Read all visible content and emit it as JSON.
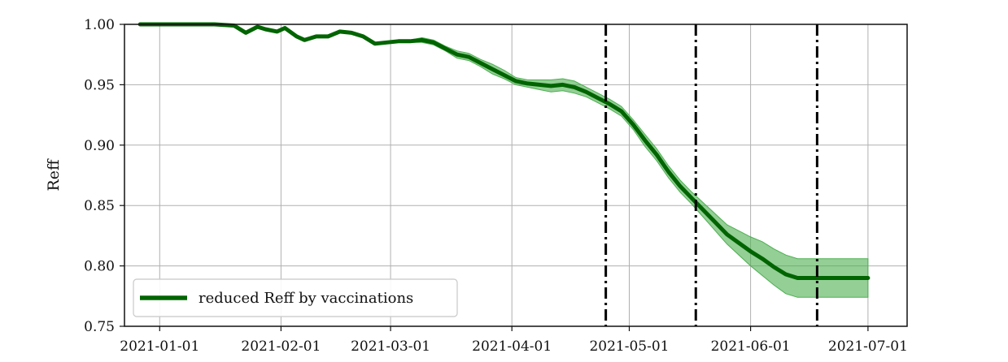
{
  "chart_data": {
    "type": "line",
    "title": "",
    "xlabel": "",
    "ylabel": "Reff",
    "ylim": [
      0.75,
      1.0
    ],
    "xlim": [
      "2020-12-23",
      "2021-07-11"
    ],
    "grid": true,
    "legend_placement": "lower-left",
    "x_ticks": [
      "2021-01-01",
      "2021-02-01",
      "2021-03-01",
      "2021-04-01",
      "2021-05-01",
      "2021-06-01",
      "2021-07-01"
    ],
    "y_ticks": [
      "0.75",
      "0.80",
      "0.85",
      "0.90",
      "0.95",
      "1.00"
    ],
    "y_tick_values": [
      0.75,
      0.8,
      0.85,
      0.9,
      0.95,
      1.0
    ],
    "vlines": [
      "2021-04-25",
      "2021-05-18",
      "2021-06-18"
    ],
    "series": [
      {
        "name": "reduced Reff by vaccinations",
        "color": "#006400",
        "band_color": "#4caf50",
        "x": [
          "2020-12-27",
          "2021-01-05",
          "2021-01-15",
          "2021-01-20",
          "2021-01-23",
          "2021-01-26",
          "2021-01-28",
          "2021-01-31",
          "2021-02-02",
          "2021-02-05",
          "2021-02-07",
          "2021-02-10",
          "2021-02-13",
          "2021-02-16",
          "2021-02-19",
          "2021-02-22",
          "2021-02-25",
          "2021-02-28",
          "2021-03-03",
          "2021-03-06",
          "2021-03-09",
          "2021-03-12",
          "2021-03-15",
          "2021-03-18",
          "2021-03-21",
          "2021-03-24",
          "2021-03-27",
          "2021-03-30",
          "2021-04-02",
          "2021-04-05",
          "2021-04-08",
          "2021-04-11",
          "2021-04-14",
          "2021-04-17",
          "2021-04-20",
          "2021-04-23",
          "2021-04-26",
          "2021-04-29",
          "2021-05-02",
          "2021-05-05",
          "2021-05-08",
          "2021-05-11",
          "2021-05-14",
          "2021-05-17",
          "2021-05-20",
          "2021-05-23",
          "2021-05-26",
          "2021-05-29",
          "2021-06-01",
          "2021-06-04",
          "2021-06-07",
          "2021-06-10",
          "2021-06-13",
          "2021-06-16",
          "2021-06-19",
          "2021-06-22",
          "2021-06-25",
          "2021-06-28",
          "2021-07-01"
        ],
        "y": [
          1.0,
          1.0,
          1.0,
          0.999,
          0.993,
          0.998,
          0.996,
          0.994,
          0.997,
          0.99,
          0.987,
          0.99,
          0.99,
          0.994,
          0.993,
          0.99,
          0.984,
          0.985,
          0.986,
          0.986,
          0.987,
          0.985,
          0.98,
          0.975,
          0.973,
          0.968,
          0.963,
          0.958,
          0.953,
          0.951,
          0.95,
          0.949,
          0.95,
          0.948,
          0.944,
          0.939,
          0.934,
          0.928,
          0.917,
          0.904,
          0.892,
          0.878,
          0.866,
          0.856,
          0.846,
          0.836,
          0.826,
          0.819,
          0.812,
          0.806,
          0.799,
          0.793,
          0.79,
          0.79,
          0.79,
          0.79,
          0.79,
          0.79,
          0.79
        ],
        "lower": [
          1.0,
          1.0,
          1.0,
          0.999,
          0.993,
          0.998,
          0.996,
          0.994,
          0.997,
          0.99,
          0.987,
          0.99,
          0.99,
          0.994,
          0.993,
          0.99,
          0.984,
          0.985,
          0.986,
          0.985,
          0.985,
          0.983,
          0.978,
          0.972,
          0.97,
          0.965,
          0.959,
          0.955,
          0.95,
          0.948,
          0.946,
          0.944,
          0.945,
          0.943,
          0.94,
          0.935,
          0.93,
          0.924,
          0.913,
          0.899,
          0.887,
          0.873,
          0.861,
          0.851,
          0.84,
          0.829,
          0.818,
          0.809,
          0.8,
          0.792,
          0.784,
          0.777,
          0.774,
          0.774,
          0.774,
          0.774,
          0.774,
          0.774,
          0.774
        ],
        "upper": [
          1.0,
          1.0,
          1.0,
          0.999,
          0.993,
          0.998,
          0.996,
          0.994,
          0.997,
          0.99,
          0.987,
          0.99,
          0.99,
          0.994,
          0.993,
          0.99,
          0.984,
          0.985,
          0.986,
          0.987,
          0.989,
          0.987,
          0.982,
          0.978,
          0.976,
          0.971,
          0.967,
          0.962,
          0.956,
          0.954,
          0.954,
          0.954,
          0.955,
          0.953,
          0.948,
          0.943,
          0.938,
          0.932,
          0.921,
          0.909,
          0.897,
          0.883,
          0.871,
          0.861,
          0.852,
          0.843,
          0.834,
          0.829,
          0.824,
          0.82,
          0.814,
          0.809,
          0.806,
          0.806,
          0.806,
          0.806,
          0.806,
          0.806,
          0.806
        ]
      }
    ]
  }
}
